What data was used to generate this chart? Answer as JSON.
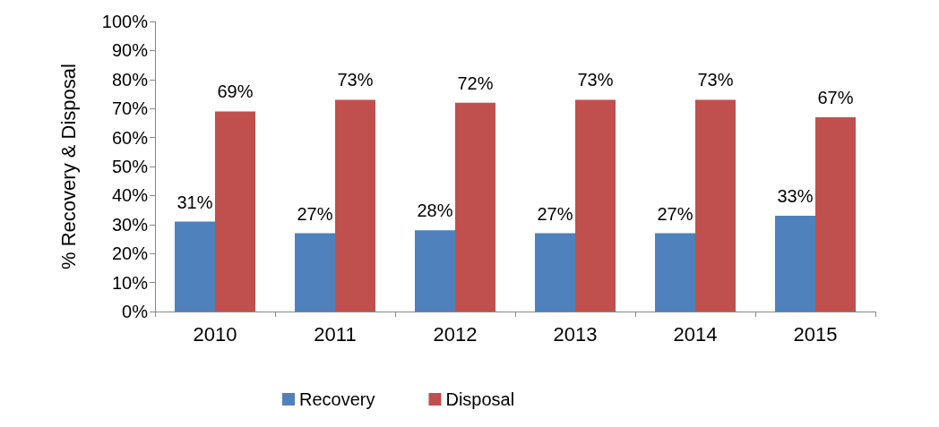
{
  "chart_data": {
    "type": "bar",
    "ylabel": "% Recovery & Disposal",
    "categories": [
      "2010",
      "2011",
      "2012",
      "2013",
      "2014",
      "2015"
    ],
    "series": [
      {
        "name": "Recovery",
        "color": "#4f81bd",
        "values": [
          31,
          27,
          28,
          27,
          27,
          33
        ],
        "value_labels": [
          "31%",
          "27%",
          "28%",
          "27%",
          "27%",
          "33%"
        ]
      },
      {
        "name": "Disposal",
        "color": "#c0504d",
        "values": [
          69,
          73,
          72,
          73,
          73,
          67
        ],
        "value_labels": [
          "69%",
          "73%",
          "72%",
          "73%",
          "73%",
          "67%"
        ]
      }
    ],
    "ylim": [
      0,
      100
    ],
    "yticks": [
      {
        "value": 0,
        "label": "0%"
      },
      {
        "value": 10,
        "label": "10%"
      },
      {
        "value": 20,
        "label": "20%"
      },
      {
        "value": 30,
        "label": "30%"
      },
      {
        "value": 40,
        "label": "40%"
      },
      {
        "value": 50,
        "label": "50%"
      },
      {
        "value": 60,
        "label": "60%"
      },
      {
        "value": 70,
        "label": "70%"
      },
      {
        "value": 80,
        "label": "80%"
      },
      {
        "value": 90,
        "label": "90%"
      },
      {
        "value": 100,
        "label": "100%"
      }
    ],
    "grid": false,
    "legend": "bottom"
  }
}
